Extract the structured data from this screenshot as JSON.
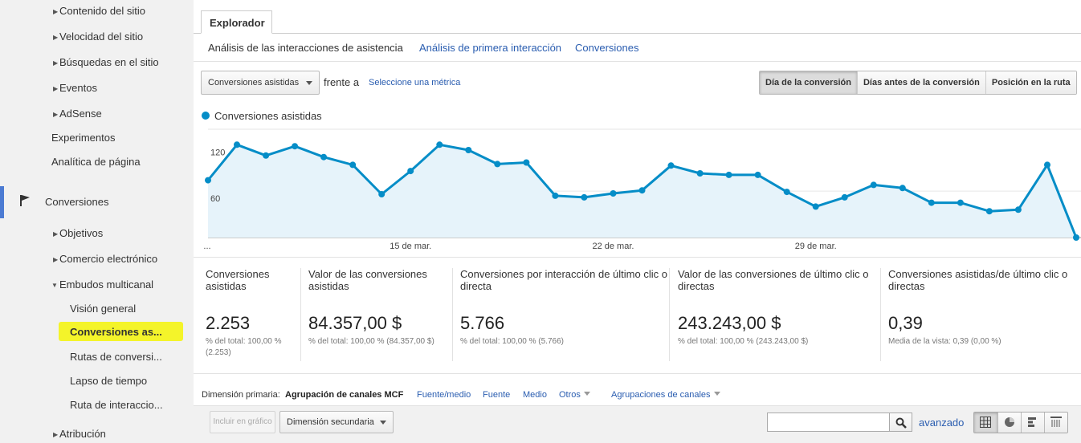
{
  "sidebar": {
    "items": [
      {
        "label": "Contenido del sitio",
        "expandable": true
      },
      {
        "label": "Velocidad del sitio",
        "expandable": true
      },
      {
        "label": "Búsquedas en el sitio",
        "expandable": true
      },
      {
        "label": "Eventos",
        "expandable": true
      },
      {
        "label": "AdSense",
        "expandable": true
      },
      {
        "label": "Experimentos",
        "expandable": false
      },
      {
        "label": "Analítica de página",
        "expandable": false
      }
    ],
    "section": {
      "label": "Conversiones",
      "icon": "flag-icon"
    },
    "conversions_items": [
      {
        "label": "Objetivos"
      },
      {
        "label": "Comercio electrónico"
      },
      {
        "label": "Embudos multicanal"
      }
    ],
    "mcf_items": [
      {
        "label": "Visión general"
      },
      {
        "label": "Conversiones as..."
      },
      {
        "label": "Rutas de conversi..."
      },
      {
        "label": "Lapso de tiempo"
      },
      {
        "label": "Ruta de interaccio..."
      }
    ],
    "last_item": {
      "label": "Atribución"
    },
    "highlight_color": "#f4f42a",
    "accent_color": "#4c7bd3"
  },
  "main": {
    "tab": "Explorador",
    "subtabs": [
      "Análisis de las interacciones de asistencia",
      "Análisis de primera interacción",
      "Conversiones"
    ],
    "metric_select": "Conversiones asistidas",
    "versus_label": "frente a",
    "select_metric_link": "Seleccione una métrica",
    "view_buttons": [
      "Día de la conversión",
      "Días antes de la conversión",
      "Posición en la ruta"
    ],
    "legend": "Conversiones asistidas"
  },
  "chart_data": {
    "type": "area",
    "series": [
      {
        "name": "Conversiones asistidas",
        "color": "#058dc7",
        "values": [
          74,
          120,
          106,
          118,
          104,
          94,
          56,
          86,
          120,
          113,
          95,
          97,
          54,
          52,
          57,
          61,
          93,
          83,
          81,
          81,
          59,
          40,
          52,
          68,
          64,
          45,
          45,
          34,
          36,
          94,
          0
        ]
      }
    ],
    "x_tick_labels": [
      "...",
      "15 de mar.",
      "22 de mar.",
      "29 de mar."
    ],
    "y_tick_labels": [
      "60",
      "120"
    ],
    "ylim": [
      0,
      140
    ],
    "grid": true
  },
  "metrics": [
    {
      "label": "Conversiones asistidas",
      "value": "2.253",
      "sub": "% del total: 100,00 % (2.253)"
    },
    {
      "label": "Valor de las conversiones asistidas",
      "value": "84.357,00 $",
      "sub": "% del total: 100,00 % (84.357,00 $)"
    },
    {
      "label": "Conversiones por interacción de último clic o directa",
      "value": "5.766",
      "sub": "% del total: 100,00 % (5.766)"
    },
    {
      "label": "Valor de las conversiones de último clic o directas",
      "value": "243.243,00 $",
      "sub": "% del total: 100,00 % (243.243,00 $)"
    },
    {
      "label": "Conversiones asistidas/de último clic o directas",
      "value": "0,39",
      "sub": "Media de la vista: 0,39 (0,00 %)"
    }
  ],
  "dimension": {
    "label": "Dimensión primaria:",
    "active": "Agrupación de canales MCF",
    "links": [
      "Fuente/medio",
      "Fuente",
      "Medio"
    ],
    "others": "Otros",
    "groupings": "Agrupaciones de canales"
  },
  "toolbar": {
    "include_chart": "Incluir en gráfico",
    "secondary_dimension": "Dimensión secundaria",
    "search_value": "",
    "advanced": "avanzado"
  }
}
